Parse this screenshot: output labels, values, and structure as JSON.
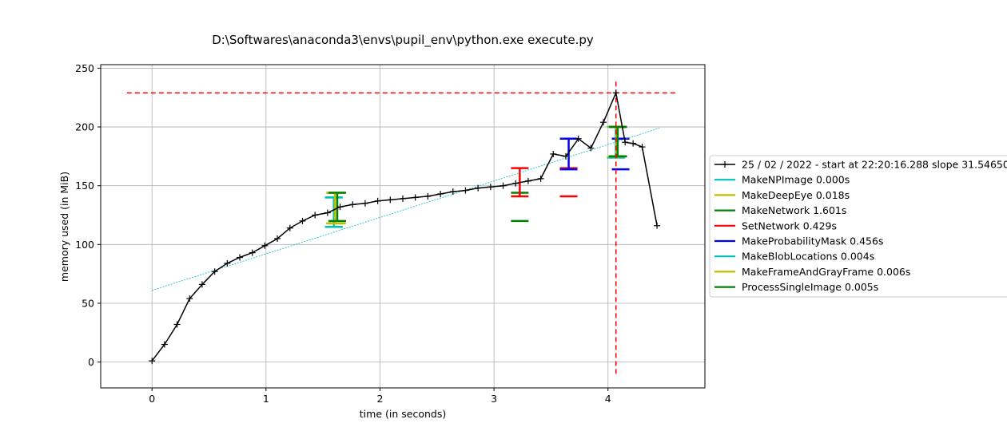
{
  "chart_data": {
    "type": "line",
    "title": "D:\\Softwares\\anaconda3\\envs\\pupil_env\\python.exe execute.py",
    "xlabel": "time (in seconds)",
    "ylabel": "memory used (in MiB)",
    "xlim": [
      -0.45,
      4.85
    ],
    "ylim": [
      -22,
      253
    ],
    "xticks": [
      0,
      1,
      2,
      3,
      4
    ],
    "yticks": [
      0,
      50,
      100,
      150,
      200,
      250
    ],
    "grid": true,
    "legend_position": "outside-right",
    "memory_series": {
      "name": "25 / 02 / 2022 - start at 22:20:16.288 slope 31.54650",
      "color": "#000000",
      "x": [
        0.0,
        0.11,
        0.22,
        0.33,
        0.44,
        0.55,
        0.66,
        0.77,
        0.88,
        0.99,
        1.1,
        1.21,
        1.32,
        1.43,
        1.54,
        1.65,
        1.76,
        1.87,
        1.98,
        2.09,
        2.2,
        2.31,
        2.42,
        2.53,
        2.64,
        2.75,
        2.86,
        2.97,
        3.08,
        3.19,
        3.3,
        3.41,
        3.52,
        3.63,
        3.74,
        3.85,
        3.96,
        4.07,
        4.15,
        4.22,
        4.3,
        4.43
      ],
      "y": [
        1,
        15,
        32,
        54,
        66,
        77,
        84,
        89,
        93,
        99,
        105,
        114,
        120,
        125,
        127,
        132,
        134,
        135,
        137,
        138,
        139,
        140,
        141,
        143,
        145,
        146,
        148,
        149,
        150,
        152,
        154,
        156,
        177,
        175,
        190,
        182,
        204,
        229,
        187,
        186,
        183,
        116
      ]
    },
    "slope_line": {
      "color": "#00bfbf",
      "x": [
        0.0,
        4.45
      ],
      "y": [
        61,
        199
      ]
    },
    "max_lines": {
      "color": "#ff0000",
      "y": 229,
      "x_at_max": 4.07,
      "hline_x": [
        -0.22,
        4.6
      ],
      "vline_y": [
        -10,
        241
      ]
    },
    "functions": [
      {
        "name": "MakeNPImage 0.000s",
        "color": "#00bfbf",
        "start": 1.595,
        "end": 1.595,
        "low": 115,
        "high": 140
      },
      {
        "name": "MakeDeepEye 0.018s",
        "color": "#bfbf00",
        "start": 1.605,
        "end": 1.623,
        "low": 118,
        "high": 144
      },
      {
        "name": "MakeNetwork 1.601s",
        "color": "#008000",
        "start": 1.625,
        "end": 3.226,
        "low": 120,
        "high": 144
      },
      {
        "name": "SetNetwork 0.429s",
        "color": "#ff0000",
        "start": 3.226,
        "end": 3.655,
        "low": 141,
        "high": 165
      },
      {
        "name": "MakeProbabilityMask 0.456s",
        "color": "#0000ff",
        "start": 3.655,
        "end": 4.111,
        "low": 164,
        "high": 190
      },
      {
        "name": "MakeBlobLocations 0.004s",
        "color": "#00bfbf",
        "start": 4.069,
        "end": 4.073,
        "low": 174,
        "high": 200
      },
      {
        "name": "MakeFrameAndGrayFrame 0.006s",
        "color": "#bfbf00",
        "start": 4.075,
        "end": 4.081,
        "low": 175,
        "high": 200
      },
      {
        "name": "ProcessSingleImage 0.005s",
        "color": "#008000",
        "start": 4.085,
        "end": 4.09,
        "low": 175,
        "high": 200
      }
    ]
  }
}
